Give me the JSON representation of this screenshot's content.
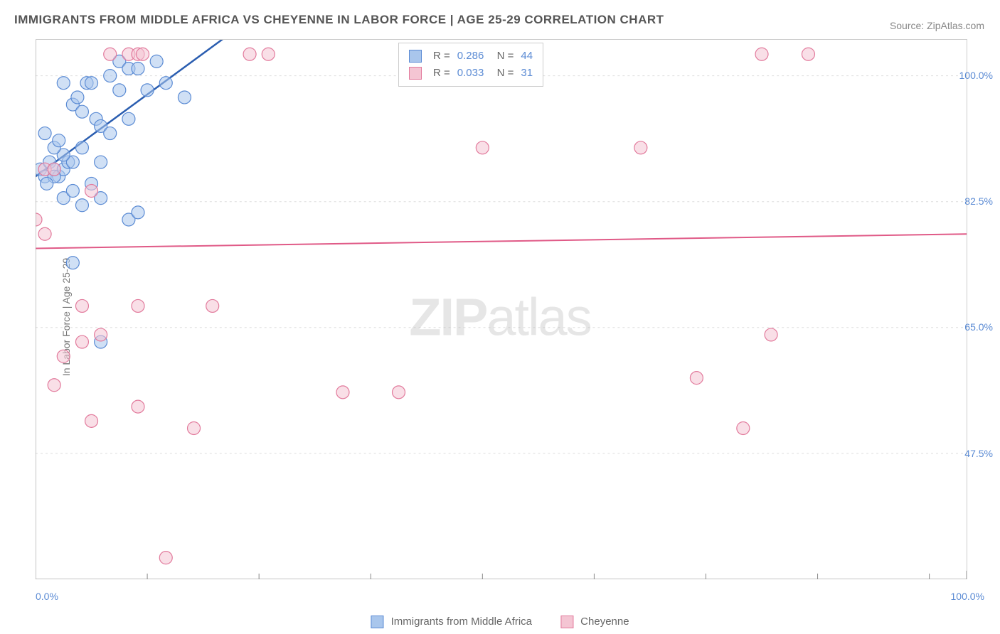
{
  "title": "IMMIGRANTS FROM MIDDLE AFRICA VS CHEYENNE IN LABOR FORCE | AGE 25-29 CORRELATION CHART",
  "source": "Source: ZipAtlas.com",
  "y_axis_label": "In Labor Force | Age 25-29",
  "watermark_bold": "ZIP",
  "watermark_light": "atlas",
  "chart": {
    "type": "scatter",
    "background_color": "#ffffff",
    "grid_color": "#dddddd",
    "axis_color": "#cccccc",
    "tick_label_color": "#5b8bd4",
    "xlim": [
      0,
      100
    ],
    "ylim": [
      30,
      105
    ],
    "x_ticks": [
      0,
      100
    ],
    "x_tick_labels": [
      "0.0%",
      "100.0%"
    ],
    "x_minor_ticks": [
      12,
      24,
      36,
      48,
      60,
      72,
      84,
      96
    ],
    "y_ticks": [
      47.5,
      65.0,
      82.5,
      100.0
    ],
    "y_tick_labels": [
      "47.5%",
      "65.0%",
      "82.5%",
      "100.0%"
    ],
    "marker_radius": 9,
    "marker_stroke_width": 1.2,
    "series": [
      {
        "name": "Immigrants from Middle Africa",
        "fill_color": "#a9c6ec",
        "stroke_color": "#5b8bd4",
        "fill_opacity": 0.55,
        "R": "0.286",
        "N": "44",
        "trend": {
          "x1": 0,
          "y1": 86,
          "x2": 20,
          "y2": 105,
          "dash_from_x": 20,
          "dash_to_x": 30,
          "color": "#2a5db0",
          "width": 2.5
        },
        "points": [
          [
            0.5,
            87
          ],
          [
            1,
            86
          ],
          [
            1.5,
            88
          ],
          [
            2,
            87
          ],
          [
            2.5,
            86
          ],
          [
            3,
            87
          ],
          [
            3.5,
            88
          ],
          [
            4,
            88
          ],
          [
            3,
            99
          ],
          [
            4,
            96
          ],
          [
            4.5,
            97
          ],
          [
            5,
            95
          ],
          [
            5.5,
            99
          ],
          [
            6,
            99
          ],
          [
            6.5,
            94
          ],
          [
            7,
            93
          ],
          [
            8,
            92
          ],
          [
            8,
            100
          ],
          [
            9,
            102
          ],
          [
            10,
            101
          ],
          [
            9,
            98
          ],
          [
            10,
            94
          ],
          [
            12,
            98
          ],
          [
            11,
            101
          ],
          [
            13,
            102
          ],
          [
            14,
            99
          ],
          [
            16,
            97
          ],
          [
            7,
            88
          ],
          [
            6,
            85
          ],
          [
            7,
            83
          ],
          [
            5,
            82
          ],
          [
            3,
            83
          ],
          [
            4,
            84
          ],
          [
            2,
            86
          ],
          [
            10,
            80
          ],
          [
            11,
            81
          ],
          [
            4,
            74
          ],
          [
            7,
            63
          ],
          [
            3,
            89
          ],
          [
            2,
            90
          ],
          [
            2.5,
            91
          ],
          [
            5,
            90
          ],
          [
            1,
            92
          ],
          [
            1.2,
            85
          ]
        ]
      },
      {
        "name": "Cheyenne",
        "fill_color": "#f4c5d3",
        "stroke_color": "#e27a9c",
        "fill_opacity": 0.55,
        "R": "0.033",
        "N": "31",
        "trend": {
          "x1": 0,
          "y1": 76,
          "x2": 100,
          "y2": 78,
          "color": "#e05a87",
          "width": 2
        },
        "points": [
          [
            8,
            103
          ],
          [
            10,
            103
          ],
          [
            11,
            103
          ],
          [
            11.5,
            103
          ],
          [
            23,
            103
          ],
          [
            25,
            103
          ],
          [
            0,
            80
          ],
          [
            1,
            78
          ],
          [
            5,
            68
          ],
          [
            11,
            68
          ],
          [
            19,
            68
          ],
          [
            5,
            63
          ],
          [
            7,
            64
          ],
          [
            3,
            61
          ],
          [
            2,
            57
          ],
          [
            11,
            54
          ],
          [
            6,
            52
          ],
          [
            17,
            51
          ],
          [
            33,
            56
          ],
          [
            39,
            56
          ],
          [
            14,
            33
          ],
          [
            48,
            90
          ],
          [
            65,
            90
          ],
          [
            76,
            51
          ],
          [
            79,
            64
          ],
          [
            71,
            58
          ],
          [
            78,
            103
          ],
          [
            83,
            103
          ],
          [
            1,
            87
          ],
          [
            2,
            87
          ],
          [
            6,
            84
          ]
        ]
      }
    ]
  },
  "bottom_legend": [
    {
      "label": "Immigrants from Middle Africa",
      "fill": "#a9c6ec",
      "border": "#5b8bd4"
    },
    {
      "label": "Cheyenne",
      "fill": "#f4c5d3",
      "border": "#e27a9c"
    }
  ]
}
